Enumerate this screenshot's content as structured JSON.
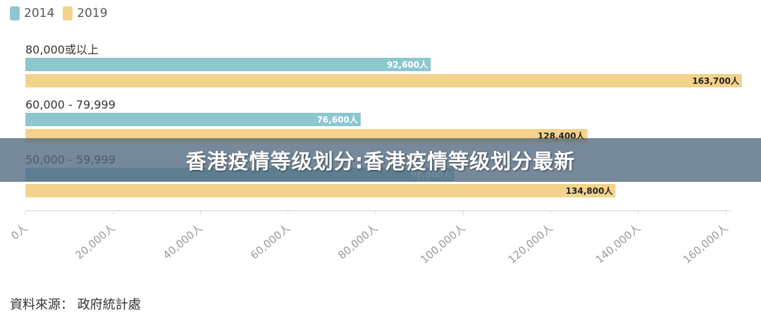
{
  "chart_data": {
    "type": "bar",
    "orientation": "horizontal",
    "categories": [
      "80,000或以上",
      "60,000 - 79,999",
      "50,000 - 59,999"
    ],
    "series": [
      {
        "name": "2014",
        "values": [
          92600,
          76600,
          98000
        ],
        "value_labels": [
          "92,600人",
          "76,600人",
          "98,000人"
        ],
        "color": "#8dc6cf"
      },
      {
        "name": "2019",
        "values": [
          163700,
          128400,
          134800
        ],
        "value_labels": [
          "163,700人",
          "128,400人",
          "134,800人"
        ],
        "color": "#f3d38c"
      }
    ],
    "xlim": [
      0,
      160000
    ],
    "xticks": [
      "0人",
      "20,000人",
      "40,000人",
      "60,000人",
      "80,000人",
      "100,000人",
      "120,000人",
      "140,000人",
      "160,000人"
    ],
    "legend_position": "top-left",
    "grid": true
  },
  "legend": [
    {
      "label": "2014",
      "color": "#8dc6cf"
    },
    {
      "label": "2019",
      "color": "#f3d38c"
    }
  ],
  "source": "資料來源： 政府統計處",
  "banner": {
    "title": "香港疫情等级划分:香港疫情等级划分最新"
  }
}
